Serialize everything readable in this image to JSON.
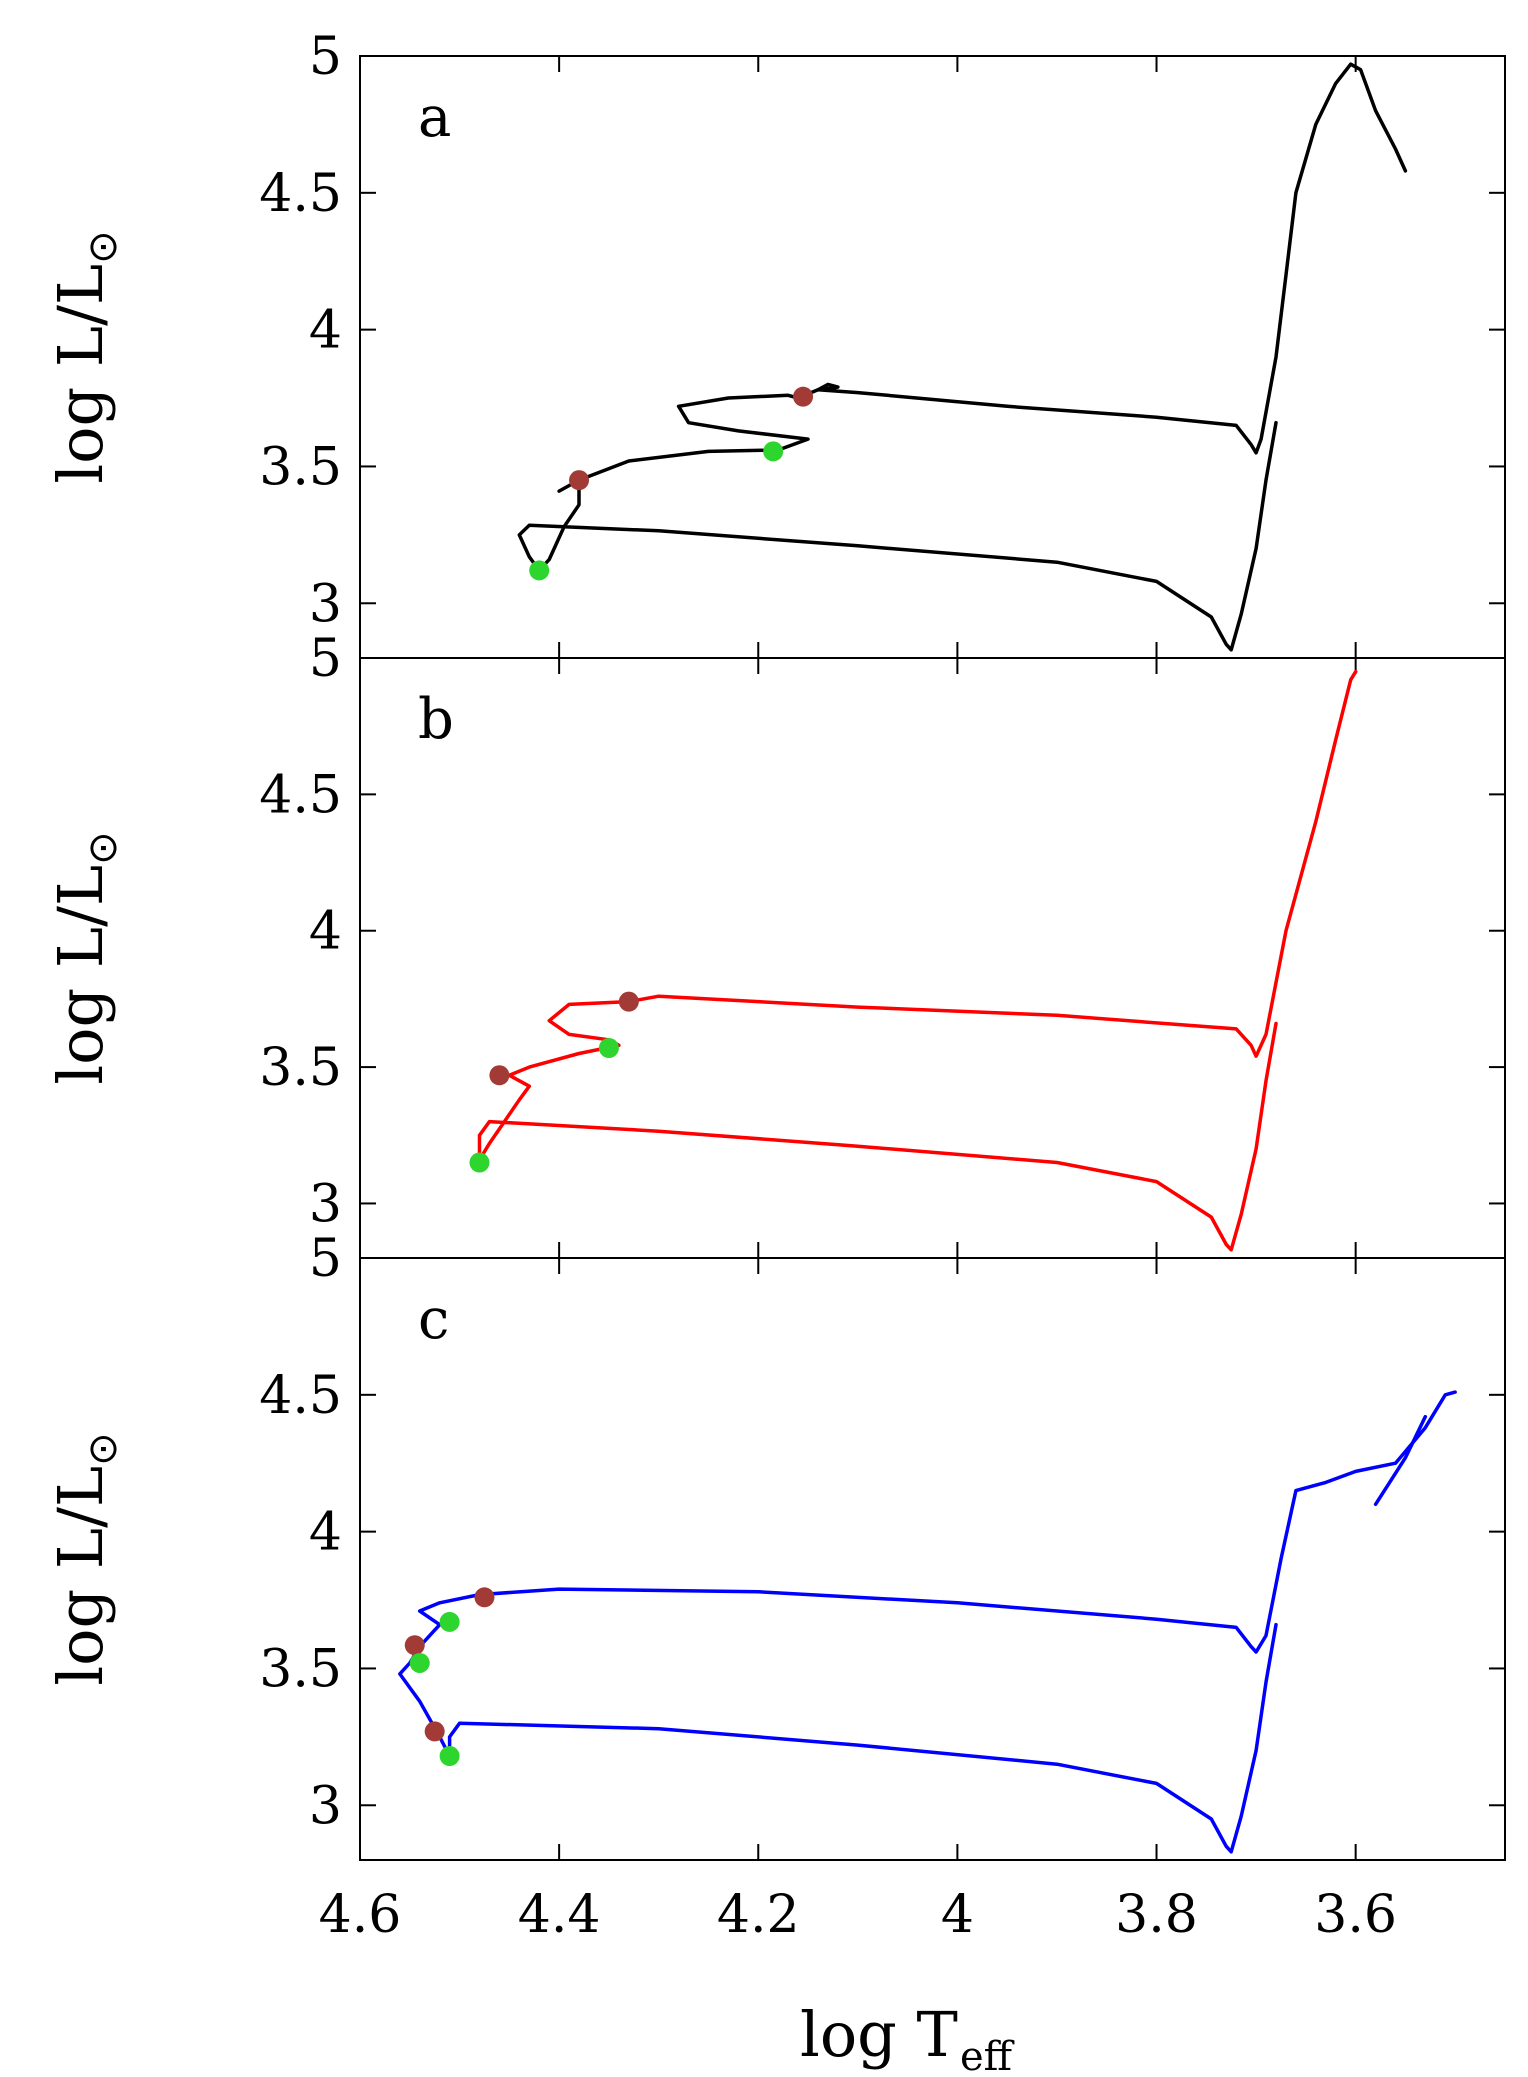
{
  "chart_data": {
    "type": "line",
    "xlabel": {
      "base": "log T",
      "sub": "eff"
    },
    "ylabel": {
      "base": "log L/L",
      "symbol": "⊙"
    },
    "xlim": [
      4.6,
      3.45
    ],
    "xticks": [
      4.6,
      4.4,
      4.2,
      4.0,
      3.8,
      3.6
    ],
    "xtick_labels": [
      "4.6",
      "4.4",
      "4.2",
      "4",
      "3.8",
      "3.6"
    ],
    "marker_colors": {
      "red": "#a23b35",
      "green": "#2ed52e"
    },
    "panels": [
      {
        "label": "a",
        "color": "#000000",
        "ylim": [
          2.8,
          5.0
        ],
        "yticks": [
          3.0,
          3.5,
          4.0,
          4.5,
          5.0
        ],
        "ytick_labels": [
          "3",
          "3.5",
          "4",
          "4.5",
          "5"
        ],
        "track": [
          [
            3.68,
            3.66
          ],
          [
            3.69,
            3.45
          ],
          [
            3.7,
            3.2
          ],
          [
            3.715,
            2.96
          ],
          [
            3.725,
            2.83
          ],
          [
            3.73,
            2.85
          ],
          [
            3.745,
            2.95
          ],
          [
            3.8,
            3.08
          ],
          [
            3.9,
            3.15
          ],
          [
            4.1,
            3.21
          ],
          [
            4.3,
            3.265
          ],
          [
            4.43,
            3.285
          ],
          [
            4.44,
            3.25
          ],
          [
            4.43,
            3.17
          ],
          [
            4.42,
            3.12
          ],
          [
            4.41,
            3.16
          ],
          [
            4.395,
            3.28
          ],
          [
            4.38,
            3.36
          ],
          [
            4.38,
            3.45
          ],
          [
            4.4,
            3.41
          ],
          [
            4.38,
            3.45
          ],
          [
            4.33,
            3.52
          ],
          [
            4.25,
            3.555
          ],
          [
            4.18,
            3.56
          ],
          [
            4.15,
            3.6
          ],
          [
            4.22,
            3.63
          ],
          [
            4.27,
            3.66
          ],
          [
            4.28,
            3.72
          ],
          [
            4.23,
            3.75
          ],
          [
            4.17,
            3.76
          ],
          [
            4.16,
            3.75
          ],
          [
            4.14,
            3.78
          ],
          [
            4.13,
            3.8
          ],
          [
            4.12,
            3.79
          ],
          [
            4.14,
            3.78
          ],
          [
            4.1,
            3.77
          ],
          [
            3.95,
            3.72
          ],
          [
            3.8,
            3.68
          ],
          [
            3.72,
            3.65
          ],
          [
            3.705,
            3.58
          ],
          [
            3.7,
            3.55
          ],
          [
            3.695,
            3.6
          ],
          [
            3.68,
            3.9
          ],
          [
            3.67,
            4.2
          ],
          [
            3.66,
            4.5
          ],
          [
            3.64,
            4.75
          ],
          [
            3.62,
            4.9
          ],
          [
            3.605,
            4.97
          ],
          [
            3.595,
            4.95
          ],
          [
            3.58,
            4.8
          ],
          [
            3.56,
            4.66
          ],
          [
            3.55,
            4.58
          ]
        ],
        "markers": [
          {
            "x": 4.155,
            "y": 3.755,
            "color": "red"
          },
          {
            "x": 4.185,
            "y": 3.555,
            "color": "green"
          },
          {
            "x": 4.38,
            "y": 3.45,
            "color": "red"
          },
          {
            "x": 4.42,
            "y": 3.12,
            "color": "green"
          }
        ]
      },
      {
        "label": "b",
        "color": "#ff0000",
        "ylim": [
          2.8,
          5.0
        ],
        "yticks": [
          3.0,
          3.5,
          4.0,
          4.5
        ],
        "ytick_labels": [
          "3",
          "3.5",
          "4",
          "4.5"
        ],
        "track": [
          [
            3.68,
            3.66
          ],
          [
            3.69,
            3.45
          ],
          [
            3.7,
            3.2
          ],
          [
            3.715,
            2.96
          ],
          [
            3.725,
            2.83
          ],
          [
            3.73,
            2.85
          ],
          [
            3.745,
            2.95
          ],
          [
            3.8,
            3.08
          ],
          [
            3.9,
            3.15
          ],
          [
            4.1,
            3.21
          ],
          [
            4.3,
            3.265
          ],
          [
            4.47,
            3.3
          ],
          [
            4.48,
            3.25
          ],
          [
            4.48,
            3.16
          ],
          [
            4.47,
            3.22
          ],
          [
            4.455,
            3.3
          ],
          [
            4.44,
            3.38
          ],
          [
            4.43,
            3.43
          ],
          [
            4.45,
            3.47
          ],
          [
            4.43,
            3.5
          ],
          [
            4.38,
            3.55
          ],
          [
            4.34,
            3.58
          ],
          [
            4.35,
            3.6
          ],
          [
            4.39,
            3.62
          ],
          [
            4.41,
            3.67
          ],
          [
            4.39,
            3.73
          ],
          [
            4.33,
            3.74
          ],
          [
            4.3,
            3.76
          ],
          [
            4.1,
            3.72
          ],
          [
            3.9,
            3.69
          ],
          [
            3.72,
            3.64
          ],
          [
            3.705,
            3.58
          ],
          [
            3.7,
            3.54
          ],
          [
            3.69,
            3.62
          ],
          [
            3.67,
            4.0
          ],
          [
            3.64,
            4.4
          ],
          [
            3.62,
            4.7
          ],
          [
            3.605,
            4.92
          ],
          [
            3.6,
            4.95
          ]
        ],
        "markers": [
          {
            "x": 4.33,
            "y": 3.74,
            "color": "red"
          },
          {
            "x": 4.35,
            "y": 3.57,
            "color": "green"
          },
          {
            "x": 4.46,
            "y": 3.47,
            "color": "red"
          },
          {
            "x": 4.48,
            "y": 3.15,
            "color": "green"
          }
        ]
      },
      {
        "label": "c",
        "color": "#0000ff",
        "ylim": [
          2.8,
          5.0
        ],
        "yticks": [
          3.0,
          3.5,
          4.0,
          4.5
        ],
        "ytick_labels": [
          "3",
          "3.5",
          "4",
          "4.5"
        ],
        "track": [
          [
            3.68,
            3.66
          ],
          [
            3.69,
            3.45
          ],
          [
            3.7,
            3.2
          ],
          [
            3.715,
            2.96
          ],
          [
            3.725,
            2.83
          ],
          [
            3.73,
            2.85
          ],
          [
            3.745,
            2.95
          ],
          [
            3.8,
            3.08
          ],
          [
            3.9,
            3.15
          ],
          [
            4.1,
            3.22
          ],
          [
            4.3,
            3.28
          ],
          [
            4.5,
            3.3
          ],
          [
            4.51,
            3.25
          ],
          [
            4.51,
            3.18
          ],
          [
            4.52,
            3.25
          ],
          [
            4.54,
            3.38
          ],
          [
            4.56,
            3.48
          ],
          [
            4.55,
            3.52
          ],
          [
            4.54,
            3.58
          ],
          [
            4.53,
            3.62
          ],
          [
            4.52,
            3.66
          ],
          [
            4.54,
            3.71
          ],
          [
            4.52,
            3.74
          ],
          [
            4.48,
            3.77
          ],
          [
            4.4,
            3.79
          ],
          [
            4.2,
            3.78
          ],
          [
            4.0,
            3.74
          ],
          [
            3.8,
            3.68
          ],
          [
            3.72,
            3.65
          ],
          [
            3.705,
            3.58
          ],
          [
            3.7,
            3.56
          ],
          [
            3.69,
            3.62
          ],
          [
            3.675,
            3.9
          ],
          [
            3.66,
            4.15
          ],
          [
            3.63,
            4.18
          ],
          [
            3.6,
            4.22
          ],
          [
            3.56,
            4.25
          ],
          [
            3.53,
            4.38
          ],
          [
            3.51,
            4.5
          ],
          [
            3.5,
            4.51
          ]
        ],
        "track2": [
          [
            3.58,
            4.1
          ],
          [
            3.55,
            4.27
          ],
          [
            3.53,
            4.42
          ]
        ],
        "markers": [
          {
            "x": 4.475,
            "y": 3.76,
            "color": "red"
          },
          {
            "x": 4.51,
            "y": 3.67,
            "color": "green"
          },
          {
            "x": 4.545,
            "y": 3.585,
            "color": "red"
          },
          {
            "x": 4.54,
            "y": 3.52,
            "color": "green"
          },
          {
            "x": 4.525,
            "y": 3.27,
            "color": "red"
          },
          {
            "x": 4.51,
            "y": 3.18,
            "color": "green"
          }
        ]
      }
    ]
  }
}
